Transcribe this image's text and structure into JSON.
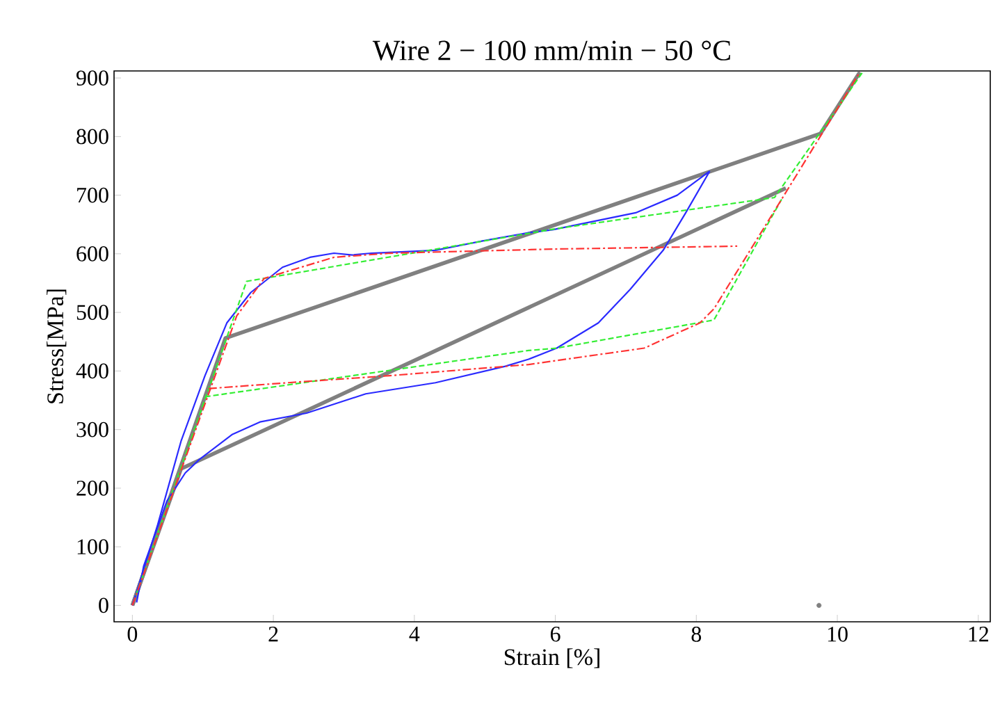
{
  "chart_data": {
    "type": "line",
    "title": "Wire 2 − 100 mm/min − 50 °C",
    "xlabel": "Strain [%]",
    "ylabel": "Stress[MPa]",
    "xlim": [
      -0.26,
      12.17
    ],
    "ylim": [
      -28,
      912
    ],
    "xticks": [
      0,
      2,
      4,
      6,
      8,
      10,
      12
    ],
    "yticks": [
      0,
      100,
      200,
      300,
      400,
      500,
      600,
      700,
      800,
      900
    ],
    "grid": false,
    "marker": "none",
    "series": [
      {
        "color": "#808080",
        "line_style": "solid",
        "x": [
          0.0,
          1.32,
          9.76,
          10.32
        ],
        "values": [
          0,
          456,
          805,
          910
        ]
      },
      {
        "color": "#808080",
        "line_style": "solid",
        "x": [
          0.0,
          0.69,
          9.27
        ],
        "values": [
          0,
          233,
          712
        ]
      },
      {
        "color": "#2a2aff",
        "line_style": "solid",
        "x": [
          0.0,
          0.36,
          0.69,
          1.03,
          1.34,
          1.68,
          2.13,
          2.52,
          2.86,
          3.12,
          3.39,
          4.3,
          4.97,
          5.62,
          5.96,
          7.14,
          7.73,
          8.19
        ],
        "values": [
          0,
          138,
          280,
          392,
          482,
          534,
          577,
          594,
          601,
          598,
          601,
          606,
          622,
          636,
          641,
          670,
          700,
          741
        ]
      },
      {
        "color": "#2a2aff",
        "line_style": "solid",
        "x": [
          0.06,
          0.16,
          0.49,
          0.75,
          0.95,
          1.42,
          1.81,
          2.47,
          3.31,
          4.3,
          5.29,
          5.62,
          6.02,
          6.61,
          7.06,
          7.53,
          7.85,
          8.19
        ],
        "values": [
          5,
          67,
          178,
          226,
          249,
          292,
          313,
          328,
          361,
          380,
          408,
          420,
          439,
          482,
          539,
          606,
          670,
          741
        ]
      },
      {
        "color": "#33ee33",
        "line_style": "dashed",
        "x": [
          0.05,
          1.62,
          6.02,
          9.11,
          10.36
        ],
        "values": [
          17,
          553,
          643,
          696,
          910
        ]
      },
      {
        "color": "#33ee33",
        "line_style": "dashed",
        "x": [
          1.03,
          5.62,
          6.02,
          8.25,
          9.21
        ],
        "values": [
          356,
          435,
          439,
          487,
          693
        ]
      },
      {
        "color": "#ff3333",
        "line_style": "dashdot",
        "x": [
          0.0,
          1.48,
          1.87,
          2.86,
          3.65,
          5.96,
          8.58
        ],
        "values": [
          0,
          494,
          558,
          594,
          601,
          608,
          613
        ]
      },
      {
        "color": "#ff3333",
        "line_style": "dashdot",
        "x": [
          1.08,
          2.21,
          3.65,
          5.62,
          7.26,
          8.05,
          8.25,
          9.21,
          10.32
        ],
        "values": [
          370,
          380,
          392,
          411,
          439,
          482,
          506,
          693,
          910
        ]
      },
      {
        "color": "#808080",
        "type": "scatter",
        "x": [
          9.74
        ],
        "values": [
          0
        ]
      }
    ]
  }
}
